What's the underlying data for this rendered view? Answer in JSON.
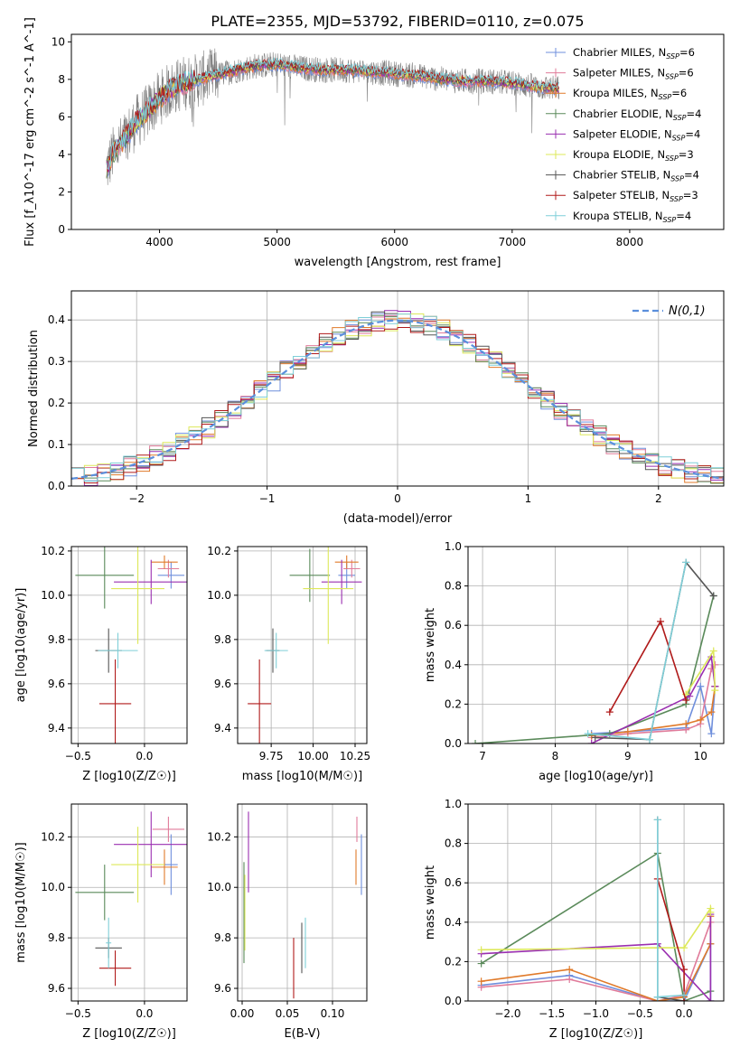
{
  "figure": {
    "title": "PLATE=2355, MJD=53792, FIBERID=0110, z=0.075"
  },
  "palette": {
    "Chabrier MILES": "#6f8fdc",
    "Salpeter MILES": "#e07b9a",
    "Kroupa MILES": "#e07a2a",
    "Chabrier ELODIE": "#5a8a5a",
    "Salpeter ELODIE": "#9a2fb0",
    "Kroupa ELODIE": "#dde85a",
    "Chabrier STELIB": "#555555",
    "Salpeter STELIB": "#b01a1a",
    "Kroupa STELIB": "#7fcfd8",
    "data": "#808080"
  },
  "chart_data": [
    {
      "id": "spectrum",
      "type": "line",
      "title": "PLATE=2355, MJD=53792, FIBERID=0110, z=0.075",
      "xlabel": "wavelength [Angstrom, rest frame]",
      "ylabel": "Flux [f_λ10^-17 erg cm^-2 s^-1 A^-1]",
      "xlim": [
        3250,
        8800
      ],
      "ylim": [
        0,
        10.4
      ],
      "xticks": [
        4000,
        5000,
        6000,
        7000,
        8000
      ],
      "yticks": [
        0,
        2,
        4,
        6,
        8,
        10
      ],
      "grid": false,
      "legend_position": "right",
      "legend": [
        {
          "label": "Chabrier MILES, N",
          "sub": "SSP",
          "suffix": "=6"
        },
        {
          "label": "Salpeter MILES, N",
          "sub": "SSP",
          "suffix": "=6"
        },
        {
          "label": "Kroupa MILES, N",
          "sub": "SSP",
          "suffix": "=6"
        },
        {
          "label": "Chabrier ELODIE, N",
          "sub": "SSP",
          "suffix": "=4"
        },
        {
          "label": "Salpeter ELODIE, N",
          "sub": "SSP",
          "suffix": "=4"
        },
        {
          "label": "Kroupa ELODIE, N",
          "sub": "SSP",
          "suffix": "=3"
        },
        {
          "label": "Chabrier STELIB, N",
          "sub": "SSP",
          "suffix": "=4"
        },
        {
          "label": "Salpeter STELIB, N",
          "sub": "SSP",
          "suffix": "=3"
        },
        {
          "label": "Kroupa STELIB, N",
          "sub": "SSP",
          "suffix": "=4"
        }
      ],
      "continuum": {
        "x": [
          3550,
          3600,
          3700,
          3800,
          3900,
          4000,
          4100,
          4200,
          4300,
          4400,
          4600,
          4800,
          5000,
          5200,
          5400,
          5600,
          5800,
          6000,
          6200,
          6400,
          6600,
          6800,
          7000,
          7200,
          7400
        ],
        "y": [
          3.2,
          4.0,
          4.8,
          5.7,
          6.3,
          7.0,
          7.5,
          7.8,
          7.9,
          8.1,
          8.4,
          8.7,
          8.8,
          8.6,
          8.5,
          8.5,
          8.4,
          8.3,
          8.2,
          8.0,
          7.9,
          7.9,
          7.8,
          7.6,
          7.5
        ]
      }
    },
    {
      "id": "residuals",
      "type": "histogram",
      "xlabel": "(data-model)/error",
      "ylabel": "Normed distribution",
      "xlim": [
        -2.5,
        2.5
      ],
      "ylim": [
        0,
        0.47
      ],
      "xticks": [
        -2,
        -1,
        0,
        1,
        2
      ],
      "yticks": [
        0.0,
        0.1,
        0.2,
        0.3,
        0.4
      ],
      "grid": true,
      "legend_position": "top-right",
      "reference_curve": {
        "label": "N(0,1)",
        "mu": 0,
        "sigma": 1
      }
    },
    {
      "id": "age-vs-Z",
      "type": "scatter",
      "xlabel": "Z [log10(Z/Z☉)]",
      "ylabel": "age [log10(age/yr)]",
      "xlim": [
        -0.55,
        0.32
      ],
      "ylim": [
        9.33,
        10.22
      ],
      "xticks": [
        -0.5,
        0.0
      ],
      "yticks": [
        9.4,
        9.6,
        9.8,
        10.0,
        10.2
      ],
      "grid": true,
      "points": [
        {
          "model": "Chabrier MILES",
          "x": 0.2,
          "xerr": 0.1,
          "y": 10.09,
          "yerr": 0.06
        },
        {
          "model": "Salpeter MILES",
          "x": 0.18,
          "xerr": 0.08,
          "y": 10.12,
          "yerr": 0.04
        },
        {
          "model": "Kroupa MILES",
          "x": 0.15,
          "xerr": 0.1,
          "y": 10.15,
          "yerr": 0.03
        },
        {
          "model": "Chabrier ELODIE",
          "x": -0.3,
          "xerr": 0.22,
          "y": 10.09,
          "yerr": 0.15
        },
        {
          "model": "Salpeter ELODIE",
          "x": 0.05,
          "xerr": 0.28,
          "y": 10.06,
          "yerr": 0.1
        },
        {
          "model": "Kroupa ELODIE",
          "x": -0.05,
          "xerr": 0.2,
          "y": 10.03,
          "yerr": 0.25
        },
        {
          "model": "Chabrier STELIB",
          "x": -0.27,
          "xerr": 0.1,
          "y": 9.75,
          "yerr": 0.1
        },
        {
          "model": "Salpeter STELIB",
          "x": -0.22,
          "xerr": 0.12,
          "y": 9.51,
          "yerr": 0.2
        },
        {
          "model": "Kroupa STELIB",
          "x": -0.2,
          "xerr": 0.15,
          "y": 9.75,
          "yerr": 0.08
        }
      ]
    },
    {
      "id": "age-vs-mass",
      "type": "scatter",
      "xlabel": "mass [log10(M/M☉)]",
      "ylabel": "",
      "xlim": [
        9.55,
        10.32
      ],
      "ylim": [
        9.33,
        10.22
      ],
      "xticks": [
        9.75,
        10.0,
        10.25
      ],
      "yticks": [
        9.4,
        9.6,
        9.8,
        10.0,
        10.2
      ],
      "grid": true,
      "points": [
        {
          "model": "Chabrier MILES",
          "x": 10.2,
          "xerr": 0.05,
          "y": 10.09,
          "yerr": 0.06
        },
        {
          "model": "Salpeter MILES",
          "x": 10.23,
          "xerr": 0.05,
          "y": 10.12,
          "yerr": 0.04
        },
        {
          "model": "Kroupa MILES",
          "x": 10.2,
          "xerr": 0.07,
          "y": 10.15,
          "yerr": 0.03
        },
        {
          "model": "Chabrier ELODIE",
          "x": 9.98,
          "xerr": 0.12,
          "y": 10.09,
          "yerr": 0.12
        },
        {
          "model": "Salpeter ELODIE",
          "x": 10.17,
          "xerr": 0.12,
          "y": 10.06,
          "yerr": 0.1
        },
        {
          "model": "Kroupa ELODIE",
          "x": 10.09,
          "xerr": 0.15,
          "y": 10.03,
          "yerr": 0.25
        },
        {
          "model": "Chabrier STELIB",
          "x": 9.76,
          "xerr": 0.04,
          "y": 9.75,
          "yerr": 0.1
        },
        {
          "model": "Salpeter STELIB",
          "x": 9.68,
          "xerr": 0.07,
          "y": 9.51,
          "yerr": 0.2
        },
        {
          "model": "Kroupa STELIB",
          "x": 9.78,
          "xerr": 0.07,
          "y": 9.75,
          "yerr": 0.08
        }
      ]
    },
    {
      "id": "massweight-vs-age",
      "type": "line",
      "xlabel": "age [log10(age/yr)]",
      "ylabel": "mass weight",
      "xlim": [
        6.8,
        10.32
      ],
      "ylim": [
        0,
        1.0
      ],
      "xticks": [
        7,
        8,
        9,
        10
      ],
      "yticks": [
        0.0,
        0.2,
        0.4,
        0.6,
        0.8,
        1.0
      ],
      "grid": true,
      "series": [
        {
          "model": "Chabrier MILES",
          "x": [
            8.5,
            9.0,
            9.8,
            10.0,
            10.15,
            10.2
          ],
          "y": [
            0.05,
            0.06,
            0.08,
            0.29,
            0.05,
            0.29
          ]
        },
        {
          "model": "Salpeter MILES",
          "x": [
            8.5,
            9.0,
            9.8,
            10.0,
            10.15,
            10.2
          ],
          "y": [
            0.03,
            0.05,
            0.07,
            0.1,
            0.38,
            0.4
          ]
        },
        {
          "model": "Kroupa MILES",
          "x": [
            8.5,
            9.0,
            9.8,
            10.0,
            10.15,
            10.2
          ],
          "y": [
            0.04,
            0.06,
            0.1,
            0.12,
            0.16,
            0.29
          ]
        },
        {
          "model": "Chabrier ELODIE",
          "x": [
            6.9,
            8.75,
            9.8,
            10.18
          ],
          "y": [
            0.0,
            0.05,
            0.2,
            0.75
          ]
        },
        {
          "model": "Salpeter ELODIE",
          "x": [
            8.5,
            9.85,
            10.15,
            10.2
          ],
          "y": [
            0.0,
            0.24,
            0.44,
            0.29
          ]
        },
        {
          "model": "Kroupa ELODIE",
          "x": [
            9.8,
            10.18,
            10.2
          ],
          "y": [
            0.25,
            0.47,
            0.27
          ]
        },
        {
          "model": "Chabrier STELIB",
          "x": [
            8.55,
            9.3,
            9.8,
            10.18
          ],
          "y": [
            0.03,
            0.02,
            0.92,
            0.75
          ]
        },
        {
          "model": "Salpeter STELIB",
          "x": [
            8.75,
            9.45,
            9.8
          ],
          "y": [
            0.16,
            0.62,
            0.22
          ]
        },
        {
          "model": "Kroupa STELIB",
          "x": [
            8.45,
            9.3,
            9.8
          ],
          "y": [
            0.05,
            0.02,
            0.92
          ]
        }
      ]
    },
    {
      "id": "mass-vs-Z",
      "type": "scatter",
      "xlabel": "Z [log10(Z/Z☉)]",
      "ylabel": "mass [log10(M/M☉)]",
      "xlim": [
        -0.55,
        0.32
      ],
      "ylim": [
        9.55,
        10.33
      ],
      "xticks": [
        -0.5,
        0.0
      ],
      "yticks": [
        9.6,
        9.8,
        10.0,
        10.2
      ],
      "grid": true,
      "points": [
        {
          "model": "Chabrier MILES",
          "x": 0.2,
          "xerr": 0.05,
          "y": 10.09,
          "yerr": 0.12
        },
        {
          "model": "Salpeter MILES",
          "x": 0.18,
          "xerr": 0.12,
          "y": 10.23,
          "yerr": 0.05
        },
        {
          "model": "Kroupa MILES",
          "x": 0.15,
          "xerr": 0.1,
          "y": 10.08,
          "yerr": 0.07
        },
        {
          "model": "Chabrier ELODIE",
          "x": -0.3,
          "xerr": 0.22,
          "y": 9.98,
          "yerr": 0.11
        },
        {
          "model": "Salpeter ELODIE",
          "x": 0.05,
          "xerr": 0.28,
          "y": 10.17,
          "yerr": 0.13
        },
        {
          "model": "Kroupa ELODIE",
          "x": -0.05,
          "xerr": 0.2,
          "y": 10.09,
          "yerr": 0.15
        },
        {
          "model": "Chabrier STELIB",
          "x": -0.27,
          "xerr": 0.1,
          "y": 9.76,
          "yerr": 0.04
        },
        {
          "model": "Salpeter STELIB",
          "x": -0.22,
          "xerr": 0.12,
          "y": 9.68,
          "yerr": 0.07
        },
        {
          "model": "Kroupa STELIB",
          "x": -0.27,
          "xerr": 0.02,
          "y": 9.78,
          "yerr": 0.1
        }
      ]
    },
    {
      "id": "mass-vs-ebv",
      "type": "scatter",
      "xlabel": "E(B-V)",
      "ylabel": "",
      "xlim": [
        -0.005,
        0.138
      ],
      "ylim": [
        9.55,
        10.33
      ],
      "xticks": [
        0.0,
        0.05,
        0.1
      ],
      "yticks": [
        9.6,
        9.8,
        10.0,
        10.2
      ],
      "grid": true,
      "points": [
        {
          "model": "Chabrier MILES",
          "x": 0.132,
          "y": 10.09,
          "yerr": 0.12
        },
        {
          "model": "Salpeter MILES",
          "x": 0.127,
          "y": 10.23,
          "yerr": 0.05
        },
        {
          "model": "Kroupa MILES",
          "x": 0.126,
          "y": 10.08,
          "yerr": 0.07
        },
        {
          "model": "Chabrier ELODIE",
          "x": 0.002,
          "y": 9.9,
          "yerr": 0.2
        },
        {
          "model": "Salpeter ELODIE",
          "x": 0.007,
          "y": 10.14,
          "yerr": 0.16
        },
        {
          "model": "Kroupa ELODIE",
          "x": 0.003,
          "y": 9.9,
          "yerr": 0.15
        },
        {
          "model": "Chabrier STELIB",
          "x": 0.066,
          "y": 9.76,
          "yerr": 0.1
        },
        {
          "model": "Salpeter STELIB",
          "x": 0.057,
          "y": 9.68,
          "yerr": 0.12
        },
        {
          "model": "Kroupa STELIB",
          "x": 0.07,
          "y": 9.78,
          "yerr": 0.1
        }
      ]
    },
    {
      "id": "massweight-vs-Z",
      "type": "line",
      "xlabel": "Z [log10(Z/Z☉)]",
      "ylabel": "mass weight",
      "xlim": [
        -2.45,
        0.45
      ],
      "ylim": [
        0,
        1.0
      ],
      "xticks": [
        -2.0,
        -1.5,
        -1.0,
        -0.5,
        0.0
      ],
      "yticks": [
        0.0,
        0.2,
        0.4,
        0.6,
        0.8,
        1.0
      ],
      "grid": true,
      "series": [
        {
          "model": "Chabrier MILES",
          "x": [
            -2.3,
            -1.3,
            -0.3,
            0.0,
            0.3,
            0.3
          ],
          "y": [
            0.08,
            0.13,
            0.0,
            0.0,
            0.29,
            0.0
          ]
        },
        {
          "model": "Salpeter MILES",
          "x": [
            -2.3,
            -1.3,
            -0.3,
            0.0,
            0.3
          ],
          "y": [
            0.07,
            0.11,
            0.0,
            0.03,
            0.4
          ]
        },
        {
          "model": "Kroupa MILES",
          "x": [
            -2.3,
            -1.3,
            -0.3,
            0.0,
            0.3,
            0.3
          ],
          "y": [
            0.1,
            0.16,
            0.0,
            0.02,
            0.29,
            0.43
          ]
        },
        {
          "model": "Chabrier ELODIE",
          "x": [
            -2.3,
            -0.3,
            0.0,
            0.3
          ],
          "y": [
            0.19,
            0.75,
            0.0,
            0.05
          ]
        },
        {
          "model": "Salpeter ELODIE",
          "x": [
            -2.3,
            -0.3,
            0.3,
            0.3
          ],
          "y": [
            0.24,
            0.29,
            0.0,
            0.44
          ]
        },
        {
          "model": "Kroupa ELODIE",
          "x": [
            -2.3,
            -0.3,
            0.0,
            0.3,
            0.3
          ],
          "y": [
            0.26,
            0.27,
            0.27,
            0.47,
            0.45
          ]
        },
        {
          "model": "Chabrier STELIB",
          "x": [
            -0.3,
            -0.3,
            0.0
          ],
          "y": [
            0.92,
            0.02,
            0.0
          ]
        },
        {
          "model": "Salpeter STELIB",
          "x": [
            -0.3,
            0.0,
            0.0
          ],
          "y": [
            0.62,
            0.16,
            0.0
          ]
        },
        {
          "model": "Kroupa STELIB",
          "x": [
            -0.3,
            -0.3,
            0.0
          ],
          "y": [
            0.92,
            0.02,
            0.03
          ]
        }
      ]
    }
  ]
}
